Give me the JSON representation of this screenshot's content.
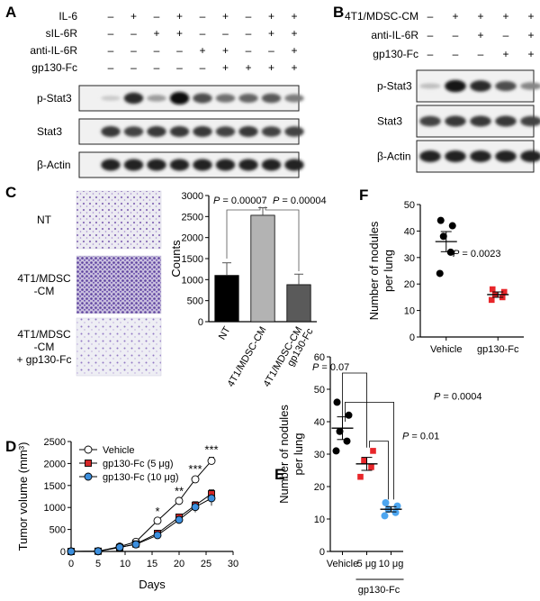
{
  "panel_letters": {
    "a": "A",
    "b": "B",
    "c": "C",
    "d": "D",
    "e": "E",
    "f": "F"
  },
  "panel_a": {
    "conditions": [
      {
        "label": "IL-6",
        "signs": [
          "–",
          "+",
          "–",
          "+",
          "–",
          "+",
          "–",
          "+",
          "+"
        ]
      },
      {
        "label": "sIL-6R",
        "signs": [
          "–",
          "–",
          "+",
          "+",
          "–",
          "–",
          "–",
          "+",
          "+"
        ]
      },
      {
        "label": "anti-IL-6R",
        "signs": [
          "–",
          "–",
          "–",
          "–",
          "+",
          "+",
          "–",
          "–",
          "+"
        ]
      },
      {
        "label": "gp130-Fc",
        "signs": [
          "–",
          "–",
          "–",
          "–",
          "–",
          "+",
          "+",
          "+",
          "+"
        ]
      }
    ],
    "blots": [
      {
        "label": "p-Stat3",
        "intensity": [
          0.15,
          0.85,
          0.35,
          1.0,
          0.7,
          0.55,
          0.6,
          0.65,
          0.5
        ]
      },
      {
        "label": "Stat3",
        "intensity": [
          0.8,
          0.75,
          0.8,
          0.8,
          0.8,
          0.75,
          0.8,
          0.75,
          0.75
        ]
      },
      {
        "label": "β-Actin",
        "intensity": [
          0.9,
          0.9,
          0.9,
          0.9,
          0.9,
          0.9,
          0.9,
          0.9,
          0.9
        ]
      }
    ]
  },
  "panel_b": {
    "conditions": [
      {
        "label": "4T1/MDSC-CM",
        "signs": [
          "–",
          "+",
          "+",
          "+",
          "+"
        ]
      },
      {
        "label": "anti-IL-6R",
        "signs": [
          "–",
          "–",
          "+",
          "–",
          "+"
        ]
      },
      {
        "label": "gp130-Fc",
        "signs": [
          "–",
          "–",
          "–",
          "+",
          "+"
        ]
      }
    ],
    "blots": [
      {
        "label": "p-Stat3",
        "intensity": [
          0.2,
          0.95,
          0.85,
          0.7,
          0.45
        ]
      },
      {
        "label": "Stat3",
        "intensity": [
          0.75,
          0.8,
          0.8,
          0.8,
          0.75
        ]
      },
      {
        "label": "β-Actin",
        "intensity": [
          0.9,
          0.9,
          0.9,
          0.9,
          0.9
        ]
      }
    ]
  },
  "panel_c": {
    "images": [
      {
        "label_lines": [
          "NT"
        ],
        "density": 0.35
      },
      {
        "label_lines": [
          "4T1/MDSC",
          "-CM"
        ],
        "density": 0.85
      },
      {
        "label_lines": [
          "4T1/MDSC",
          "-CM",
          "+ gp130-Fc"
        ],
        "density": 0.3
      }
    ]
  },
  "chart_data": [
    {
      "type": "bar",
      "panel": "C",
      "ylabel": "Counts",
      "categories": [
        "NT",
        "4T1/MDSC-CM",
        "4T1/MDSC-CM gp130-Fc"
      ],
      "values": [
        1100,
        2530,
        880
      ],
      "errors": [
        300,
        180,
        250
      ],
      "bar_colors": [
        "#000000",
        "#b3b3b3",
        "#5a5a5a"
      ],
      "ylim": [
        0,
        3000
      ],
      "yticks": [
        0,
        500,
        1000,
        1500,
        2000,
        2500,
        3000
      ],
      "annotations": [
        "P = 0.00007",
        "P = 0.00004"
      ]
    },
    {
      "type": "line",
      "panel": "D",
      "xlabel": "Days",
      "ylabel": "Tumor volume (mm³)",
      "xlim": [
        0,
        30
      ],
      "ylim": [
        0,
        2500
      ],
      "xticks": [
        0,
        5,
        10,
        15,
        20,
        25,
        30
      ],
      "yticks": [
        0,
        500,
        1000,
        1500,
        2000,
        2500
      ],
      "x": [
        0,
        5,
        9,
        12,
        16,
        20,
        23,
        26
      ],
      "series": [
        {
          "name": "Vehicle",
          "values": [
            0,
            5,
            110,
            220,
            700,
            1150,
            1640,
            2060
          ],
          "errors": [
            0,
            5,
            20,
            30,
            40,
            50,
            60,
            80
          ],
          "color": "#ffffff",
          "marker": "circle"
        },
        {
          "name": "gp130-Fc (5 μg)",
          "values": [
            0,
            5,
            90,
            170,
            410,
            780,
            1050,
            1310
          ],
          "errors": [
            0,
            5,
            20,
            30,
            50,
            60,
            80,
            90
          ],
          "color": "#d62728",
          "marker": "square"
        },
        {
          "name": "gp130-Fc (10 μg)",
          "values": [
            0,
            5,
            95,
            160,
            370,
            720,
            1010,
            1210
          ],
          "errors": [
            0,
            5,
            20,
            30,
            40,
            70,
            120,
            170
          ],
          "color": "#3c8fde",
          "marker": "circle"
        }
      ],
      "significance": [
        {
          "x": 16,
          "label": "*"
        },
        {
          "x": 20,
          "label": "**"
        },
        {
          "x": 23,
          "label": "***"
        },
        {
          "x": 26,
          "label": "***"
        }
      ]
    },
    {
      "type": "scatter",
      "panel": "E",
      "ylabel": "Number of nodules per lung",
      "categories": [
        "Vehicle",
        "5 μg",
        "10 μg"
      ],
      "group_label": "gp130-Fc",
      "ylim": [
        0,
        60
      ],
      "yticks": [
        0,
        10,
        20,
        30,
        40,
        50,
        60
      ],
      "groups": [
        {
          "name": "Vehicle",
          "points": [
            31,
            34,
            37,
            42,
            46
          ],
          "mean": 38,
          "sem": 3.5,
          "color": "#000000"
        },
        {
          "name": "5 μg",
          "points": [
            23,
            26,
            28,
            31
          ],
          "mean": 27,
          "sem": 2.0,
          "color": "#e8262a"
        },
        {
          "name": "10 μg",
          "points": [
            11,
            12,
            13,
            14,
            15
          ],
          "mean": 13,
          "sem": 0.8,
          "color": "#4da6f0"
        }
      ],
      "annotations": [
        "P = 0.07",
        "P = 0.0004",
        "P = 0.01"
      ]
    },
    {
      "type": "scatter",
      "panel": "F",
      "ylabel": "Number of nodules per lung",
      "categories": [
        "Vehicle",
        "gp130-Fc"
      ],
      "ylim": [
        0,
        50
      ],
      "yticks": [
        0,
        10,
        20,
        30,
        40,
        50
      ],
      "groups": [
        {
          "name": "Vehicle",
          "points": [
            24,
            32,
            38,
            42,
            44
          ],
          "mean": 36,
          "sem": 3.8,
          "color": "#000000"
        },
        {
          "name": "gp130-Fc",
          "points": [
            14,
            15,
            16,
            17,
            18
          ],
          "mean": 16,
          "sem": 1.0,
          "color": "#e8262a"
        }
      ],
      "annotations": [
        "P = 0.0023"
      ]
    }
  ]
}
